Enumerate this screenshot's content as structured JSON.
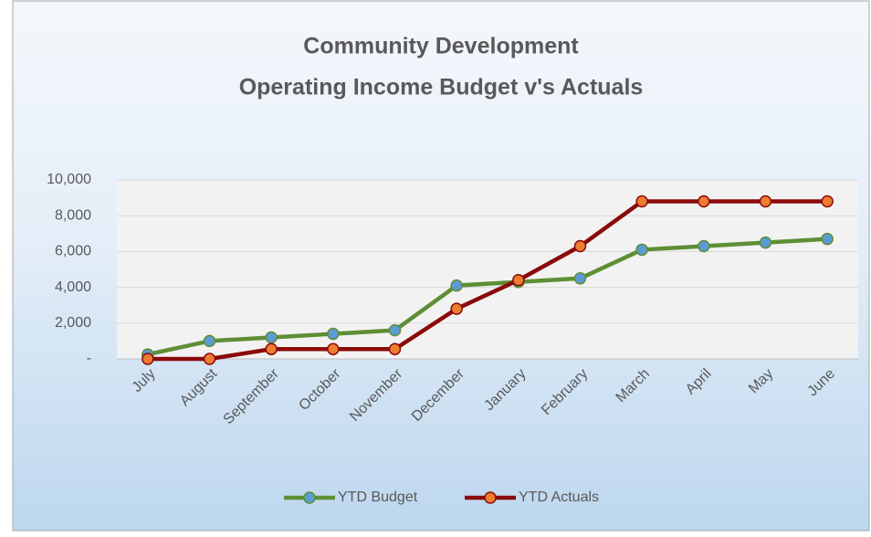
{
  "chart_data": {
    "type": "line",
    "title": [
      "Community Development",
      "Operating Income Budget v's Actuals"
    ],
    "categories": [
      "July",
      "August",
      "September",
      "October",
      "November",
      "December",
      "January",
      "February",
      "March",
      "April",
      "May",
      "June"
    ],
    "series": [
      {
        "name": "YTD Budget",
        "color": "#5e8e35",
        "marker_color": "#5b9bd5",
        "values": [
          250,
          1000,
          1200,
          1400,
          1600,
          4100,
          4300,
          4500,
          6100,
          6300,
          6500,
          6700
        ]
      },
      {
        "name": "YTD Actuals",
        "color": "#8b0a0a",
        "marker_color": "#ed7d31",
        "values": [
          0,
          0,
          550,
          550,
          550,
          2800,
          4400,
          6300,
          8800,
          8800,
          8800,
          8800
        ]
      }
    ],
    "ylim": [
      0,
      10000
    ],
    "yticks": [
      {
        "value": 0,
        "label": "-"
      },
      {
        "value": 2000,
        "label": "2,000"
      },
      {
        "value": 4000,
        "label": "4,000"
      },
      {
        "value": 6000,
        "label": "6,000"
      },
      {
        "value": 8000,
        "label": "8,000"
      },
      {
        "value": 10000,
        "label": "10,000"
      }
    ],
    "grid": true,
    "legend": "bottom"
  }
}
